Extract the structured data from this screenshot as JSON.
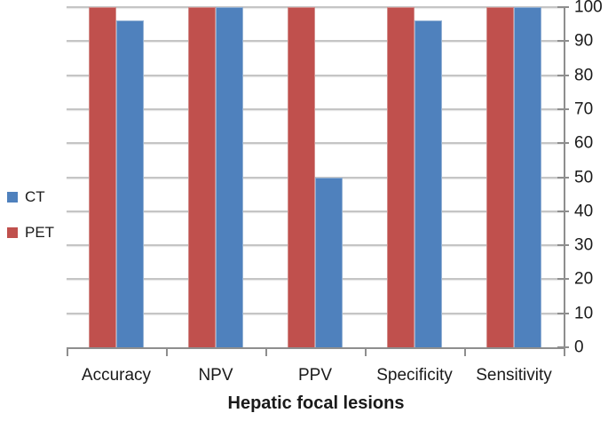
{
  "chart_data": {
    "type": "bar",
    "title": "",
    "categories": [
      "Accuracy",
      "NPV",
      "PPV",
      "Specificity",
      "Sensitivity"
    ],
    "series": [
      {
        "name": "PET",
        "color": "#C0504D",
        "edge_color": "#D28D8B",
        "values": [
          100,
          100,
          100,
          100,
          100
        ]
      },
      {
        "name": "CT",
        "color": "#4F81BD",
        "edge_color": "#93B1D4",
        "values": [
          96,
          100,
          50,
          96,
          100
        ]
      }
    ],
    "xlabel": "Hepatic focal lesions",
    "ylabel": "",
    "ylim": [
      0,
      100
    ],
    "ytick_step": 10,
    "yticks": [
      "0",
      "10",
      "20",
      "30",
      "40",
      "50",
      "60",
      "70",
      "80",
      "90",
      "100"
    ],
    "yaxis_position": "right",
    "legend_position": "left",
    "grid": true,
    "bar_order_in_group": [
      "PET",
      "CT"
    ]
  },
  "legend": {
    "items": [
      {
        "label": "CT",
        "color": "#4F81BD"
      },
      {
        "label": "PET",
        "color": "#C0504D"
      }
    ]
  },
  "colors": {
    "grid": "#c5c5c5",
    "axis": "#8e8e8e",
    "text": "#1a1a1a",
    "background": "#ffffff"
  }
}
